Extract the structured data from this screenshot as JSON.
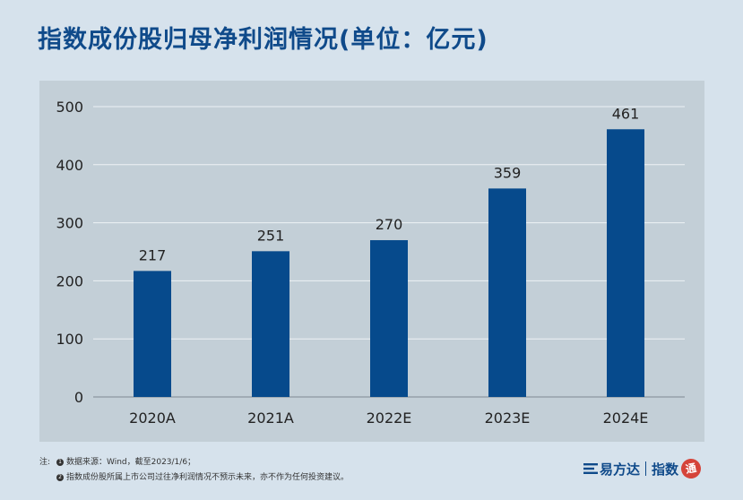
{
  "title": "指数成份股归母净利润情况(单位：亿元)",
  "chart_data": {
    "type": "bar",
    "title": "指数成份股归母净利润情况(单位：亿元)",
    "categories": [
      "2020A",
      "2021A",
      "2022E",
      "2023E",
      "2024E"
    ],
    "values": [
      217,
      251,
      270,
      359,
      461
    ],
    "ylim": [
      0,
      500
    ],
    "yticks": [
      0,
      100,
      200,
      300,
      400,
      500
    ],
    "xlabel": "",
    "ylabel": "",
    "grid": true,
    "bar_color": "#064a8c"
  },
  "notes": {
    "prefix": "注:",
    "items": [
      {
        "num": "1",
        "text": "数据来源：Wind，截至2023/1/6；"
      },
      {
        "num": "2",
        "text": "指数成份股所属上市公司过往净利润情况不预示未来，亦不作为任何投资建议。"
      }
    ]
  },
  "brand": {
    "logo_text": "易方达",
    "sub_text": "指数",
    "badge_text": "通",
    "logo_icon": "efund-logo-icon"
  },
  "colors": {
    "background": "#d6e2ec",
    "panel": "#c3cfd7",
    "title": "#0f4a8a",
    "bar": "#064a8c"
  }
}
